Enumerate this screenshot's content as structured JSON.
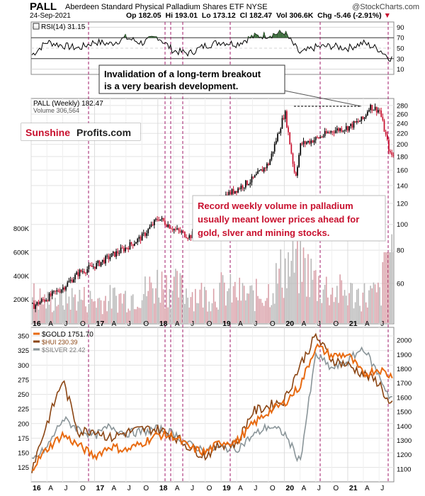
{
  "header": {
    "ticker": "PALL",
    "full_name": "Aberdeen Standard Physical Palladium Shares ETF",
    "exchange": "NYSE",
    "brand": "@StockCharts.com",
    "date": "24-Sep-2021",
    "open_label": "Op",
    "open": "182.05",
    "high_label": "Hi",
    "high": "193.01",
    "low_label": "Lo",
    "low": "173.12",
    "close_label": "Cl",
    "close": "182.47",
    "vol_label": "Vol",
    "vol": "306.6K",
    "chg_label": "Chg",
    "chg": "-5.46 (-2.91%)"
  },
  "colors": {
    "annotation_red": "#c8102e",
    "up_candle": "#000000",
    "down_candle": "#c8102e",
    "volume_bar": "#d9a0a8",
    "rsi_line": "#000000",
    "rsi_fill": "#3a6b3a",
    "gold": "#e86a10",
    "hui": "#8b4513",
    "silver": "#8a9599"
  },
  "rsi_panel": {
    "label": "RSI(14) 31.15",
    "ticks": [
      "90",
      "70",
      "50",
      "30",
      "10"
    ]
  },
  "price_panel": {
    "legend_price": "PALL (Weekly) 182.47",
    "legend_volume": "Volume 306,564",
    "price_ticks": [
      "280",
      "260",
      "240",
      "220",
      "200",
      "180",
      "160",
      "140",
      "120",
      "100",
      "80",
      "60"
    ],
    "volume_ticks": [
      "800K",
      "600K",
      "400K",
      "200K"
    ],
    "logo_part1": "Sunshine",
    "logo_part2": "Profits.com",
    "annotation_top": [
      "Invalidation of a long-term breakout",
      "is a very bearish development."
    ],
    "annotation_mid": [
      "Record weekly volume in palladium",
      "usually meant lower prices ahead for",
      "gold, slver and mining stocks."
    ]
  },
  "comparison_panel": {
    "legend": [
      {
        "label": "$GOLD 1751.70",
        "color": "#e86a10"
      },
      {
        "label": "$HUI 230.39",
        "color": "#8b4513"
      },
      {
        "label": "$SILVER 22.42",
        "color": "#8a9599"
      }
    ],
    "left_ticks": [
      "350",
      "325",
      "300",
      "275",
      "250",
      "225",
      "200",
      "175",
      "150",
      "125"
    ],
    "right_ticks": [
      "2000",
      "1900",
      "1800",
      "1700",
      "1600",
      "1500",
      "1400",
      "1300",
      "1200",
      "1100"
    ]
  },
  "x_axis": {
    "labels": [
      "16",
      "A",
      "J",
      "O",
      "17",
      "A",
      "J",
      "O",
      "18",
      "A",
      "J",
      "O",
      "19",
      "A",
      "J",
      "O",
      "20",
      "A",
      "J",
      "O",
      "21",
      "A",
      "J"
    ]
  },
  "chart_data": [
    {
      "type": "line",
      "title": "RSI(14) 31.15",
      "ylim": [
        0,
        100
      ],
      "grid": true,
      "x": [
        "2016-01",
        "2016-04",
        "2016-07",
        "2016-10",
        "2017-01",
        "2017-04",
        "2017-07",
        "2017-10",
        "2018-01",
        "2018-04",
        "2018-07",
        "2018-10",
        "2019-01",
        "2019-04",
        "2019-07",
        "2019-10",
        "2020-01",
        "2020-04",
        "2020-07",
        "2020-10",
        "2021-01",
        "2021-04",
        "2021-07",
        "2021-09"
      ],
      "series": [
        {
          "name": "RSI(14)",
          "values": [
            36,
            62,
            55,
            50,
            62,
            58,
            70,
            60,
            72,
            45,
            40,
            55,
            62,
            58,
            72,
            75,
            80,
            40,
            52,
            54,
            50,
            60,
            48,
            31
          ]
        }
      ]
    },
    {
      "type": "line",
      "title": "PALL (Weekly) 182.47",
      "ylim": [
        60,
        285
      ],
      "log_scale": true,
      "x": [
        "2016-01",
        "2016-04",
        "2016-07",
        "2016-10",
        "2017-01",
        "2017-04",
        "2017-07",
        "2017-10",
        "2018-01",
        "2018-04",
        "2018-07",
        "2018-10",
        "2019-01",
        "2019-04",
        "2019-07",
        "2019-10",
        "2020-01",
        "2020-03",
        "2020-04",
        "2020-07",
        "2020-10",
        "2021-01",
        "2021-04",
        "2021-05",
        "2021-07",
        "2021-09"
      ],
      "series": [
        {
          "name": "PALL (Weekly)",
          "values": [
            49,
            53,
            58,
            66,
            70,
            76,
            82,
            90,
            106,
            96,
            90,
            102,
            126,
            136,
            148,
            170,
            265,
            150,
            200,
            210,
            225,
            232,
            250,
            278,
            268,
            182
          ]
        }
      ]
    },
    {
      "type": "bar",
      "title": "Volume 306,564",
      "ylim": [
        0,
        900000
      ],
      "x": [
        "2016-01",
        "2016-04",
        "2016-07",
        "2016-10",
        "2017-01",
        "2017-04",
        "2017-07",
        "2017-10",
        "2018-01",
        "2018-04",
        "2018-07",
        "2018-10",
        "2019-01",
        "2019-04",
        "2019-07",
        "2019-10",
        "2020-01",
        "2020-04",
        "2020-07",
        "2020-10",
        "2021-01",
        "2021-04",
        "2021-07",
        "2021-09"
      ],
      "series": [
        {
          "name": "Volume",
          "values": [
            260000,
            200000,
            230000,
            240000,
            210000,
            230000,
            250000,
            280000,
            380000,
            330000,
            290000,
            260000,
            310000,
            280000,
            250000,
            300000,
            520000,
            560000,
            380000,
            300000,
            280000,
            260000,
            270000,
            650000
          ]
        }
      ]
    },
    {
      "type": "line",
      "title": "",
      "x": [
        "2016-01",
        "2016-04",
        "2016-07",
        "2016-10",
        "2017-01",
        "2017-04",
        "2017-07",
        "2017-10",
        "2018-01",
        "2018-04",
        "2018-07",
        "2018-10",
        "2019-01",
        "2019-04",
        "2019-07",
        "2019-10",
        "2020-01",
        "2020-04",
        "2020-07",
        "2020-10",
        "2021-01",
        "2021-04",
        "2021-07",
        "2021-09"
      ],
      "ylim_left": [
        110,
        355
      ],
      "ylim_right": [
        1050,
        2050
      ],
      "series": [
        {
          "name": "$GOLD",
          "axis": "right",
          "values": [
            1100,
            1240,
            1340,
            1265,
            1190,
            1260,
            1230,
            1280,
            1340,
            1330,
            1250,
            1215,
            1290,
            1290,
            1410,
            1500,
            1560,
            1680,
            1960,
            1890,
            1900,
            1760,
            1800,
            1751.7
          ]
        },
        {
          "name": "$HUI",
          "axis": "left",
          "values": [
            120,
            200,
            275,
            185,
            190,
            175,
            185,
            190,
            190,
            180,
            160,
            145,
            165,
            165,
            220,
            230,
            240,
            300,
            350,
            310,
            300,
            285,
            270,
            230.39
          ]
        },
        {
          "name": "$SILVER",
          "axis": "right",
          "values": [
            1150,
            1250,
            1450,
            1380,
            1330,
            1400,
            1350,
            1360,
            1380,
            1350,
            1270,
            1230,
            1250,
            1240,
            1330,
            1400,
            1350,
            1150,
            1900,
            1800,
            1850,
            1950,
            1750,
            1600
          ]
        }
      ]
    }
  ]
}
